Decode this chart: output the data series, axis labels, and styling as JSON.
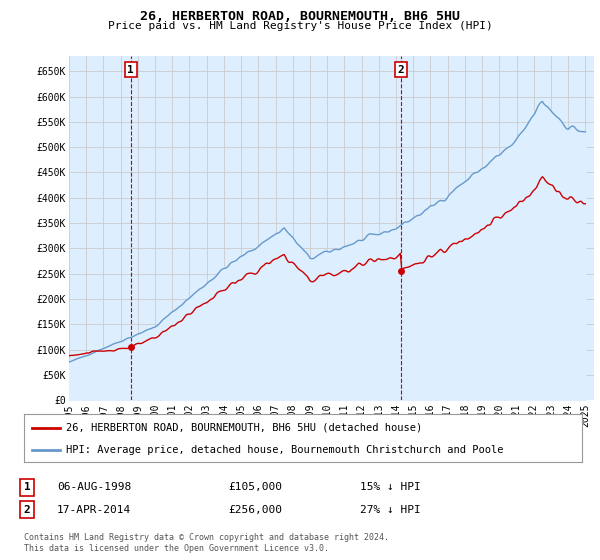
{
  "title": "26, HERBERTON ROAD, BOURNEMOUTH, BH6 5HU",
  "subtitle": "Price paid vs. HM Land Registry's House Price Index (HPI)",
  "ylabel_ticks": [
    "£0",
    "£50K",
    "£100K",
    "£150K",
    "£200K",
    "£250K",
    "£300K",
    "£350K",
    "£400K",
    "£450K",
    "£500K",
    "£550K",
    "£600K",
    "£650K"
  ],
  "ytick_values": [
    0,
    50000,
    100000,
    150000,
    200000,
    250000,
    300000,
    350000,
    400000,
    450000,
    500000,
    550000,
    600000,
    650000
  ],
  "ylim": [
    0,
    680000
  ],
  "xlim_start": 1995.0,
  "xlim_end": 2025.5,
  "hpi_color": "#6699cc",
  "hpi_fill_color": "#ddeeff",
  "price_color": "#cc0000",
  "bg_color": "#ffffff",
  "grid_color": "#cccccc",
  "legend1": "26, HERBERTON ROAD, BOURNEMOUTH, BH6 5HU (detached house)",
  "legend2": "HPI: Average price, detached house, Bournemouth Christchurch and Poole",
  "sale1_date": "06-AUG-1998",
  "sale1_price": "£105,000",
  "sale1_hpi": "15% ↓ HPI",
  "sale1_year": 1998.59,
  "sale1_value": 105000,
  "sale2_date": "17-APR-2014",
  "sale2_price": "£256,000",
  "sale2_hpi": "27% ↓ HPI",
  "sale2_year": 2014.29,
  "sale2_value": 256000,
  "footnote": "Contains HM Land Registry data © Crown copyright and database right 2024.\nThis data is licensed under the Open Government Licence v3.0.",
  "xticks": [
    1995,
    1996,
    1997,
    1998,
    1999,
    2000,
    2001,
    2002,
    2003,
    2004,
    2005,
    2006,
    2007,
    2008,
    2009,
    2010,
    2011,
    2012,
    2013,
    2014,
    2015,
    2016,
    2017,
    2018,
    2019,
    2020,
    2021,
    2022,
    2023,
    2024,
    2025
  ]
}
